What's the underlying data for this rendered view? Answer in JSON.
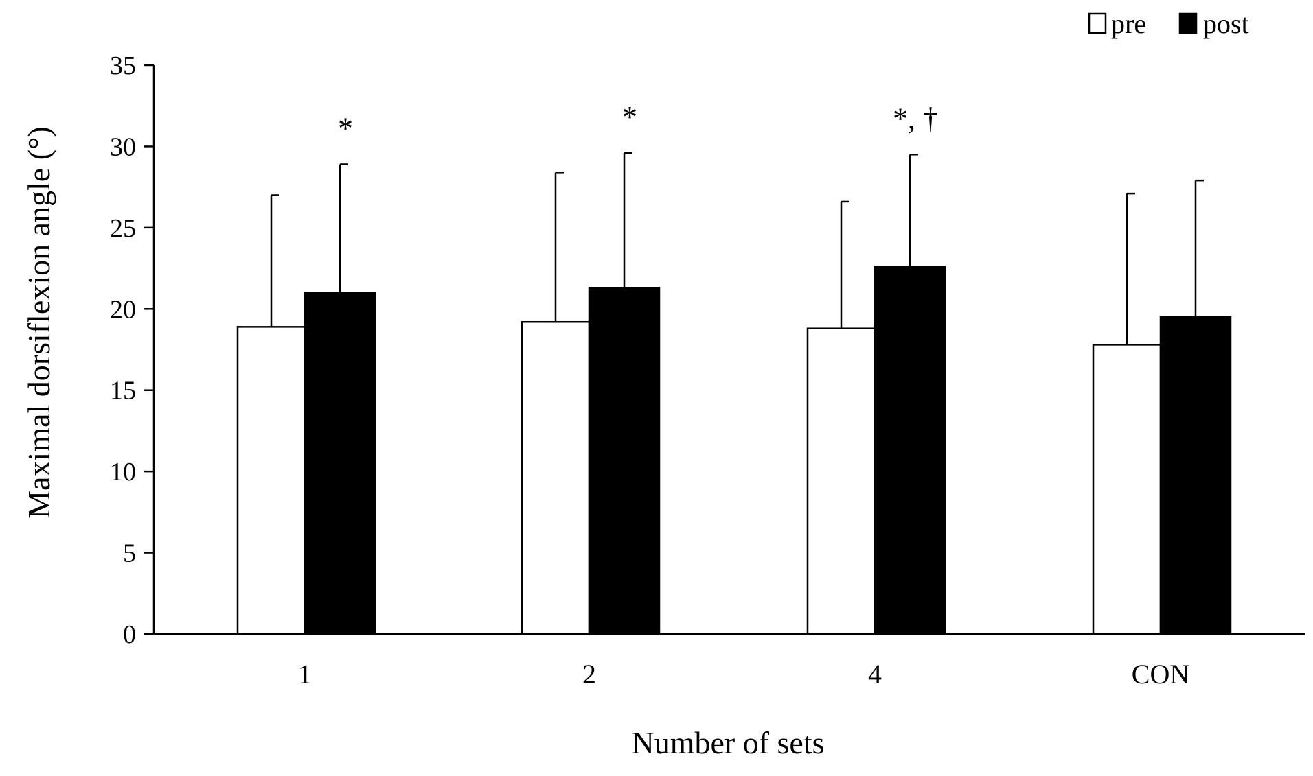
{
  "chart_data": {
    "type": "bar",
    "title": "",
    "xlabel": "Number of sets",
    "ylabel": "Maximal dorsiflexion angle (°)",
    "ylim": [
      0,
      35
    ],
    "yticks": [
      "0",
      "5",
      "10",
      "15",
      "20",
      "25",
      "30",
      "35"
    ],
    "categories": [
      "1",
      "2",
      "4",
      "CON"
    ],
    "series": [
      {
        "name": "pre",
        "color": "#ffffff",
        "values": [
          18.9,
          19.2,
          18.8,
          17.8
        ],
        "error_upper": [
          27.0,
          28.4,
          26.6,
          27.1
        ]
      },
      {
        "name": "post",
        "color": "#000000",
        "values": [
          21.0,
          21.3,
          22.6,
          19.5
        ],
        "error_upper": [
          28.9,
          29.6,
          29.5,
          27.9
        ]
      }
    ],
    "annotations": [
      "*",
      "*",
      "*, †",
      ""
    ],
    "legend_position": "top-right",
    "grid": false
  }
}
